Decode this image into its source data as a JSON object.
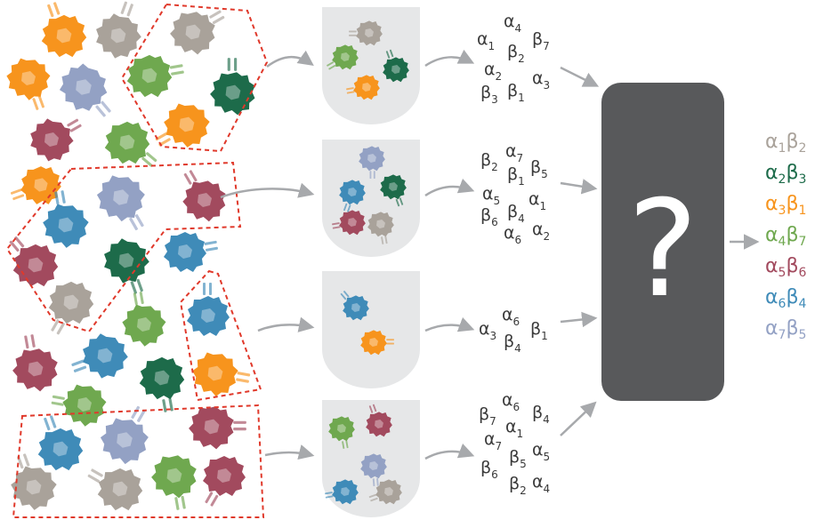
{
  "colors": {
    "orange": "#f7941d",
    "taupe": "#a9a29a",
    "lavender": "#93a1c4",
    "green": "#6fa84f",
    "darkgreen": "#1d6b4a",
    "maroon": "#a24a5e",
    "blue": "#3f8bb8",
    "grey_box": "#58595b",
    "tube": "#e6e7e8",
    "arrow": "#a7a9ac",
    "dashed": "#e0392b"
  },
  "box": {
    "symbol": "?"
  },
  "chains": {
    "alpha": "α",
    "beta": "β"
  },
  "groups": [
    {
      "labels": [
        {
          "c": "α",
          "s": "4"
        },
        {
          "c": "α",
          "s": "1"
        },
        {
          "c": "β",
          "s": "2"
        },
        {
          "c": "β",
          "s": "7"
        },
        {
          "c": "α",
          "s": "2"
        },
        {
          "c": "α",
          "s": "3"
        },
        {
          "c": "β",
          "s": "3"
        },
        {
          "c": "β",
          "s": "1"
        }
      ]
    },
    {
      "labels": [
        {
          "c": "α",
          "s": "7"
        },
        {
          "c": "β",
          "s": "2"
        },
        {
          "c": "β",
          "s": "1"
        },
        {
          "c": "β",
          "s": "5"
        },
        {
          "c": "α",
          "s": "5"
        },
        {
          "c": "α",
          "s": "1"
        },
        {
          "c": "β",
          "s": "6"
        },
        {
          "c": "β",
          "s": "4"
        },
        {
          "c": "α",
          "s": "6"
        },
        {
          "c": "α",
          "s": "2"
        }
      ]
    },
    {
      "labels": [
        {
          "c": "α",
          "s": "6"
        },
        {
          "c": "α",
          "s": "3"
        },
        {
          "c": "β",
          "s": "4"
        },
        {
          "c": "β",
          "s": "1"
        }
      ]
    },
    {
      "labels": [
        {
          "c": "α",
          "s": "6"
        },
        {
          "c": "β",
          "s": "7"
        },
        {
          "c": "β",
          "s": "4"
        },
        {
          "c": "α",
          "s": "1"
        },
        {
          "c": "α",
          "s": "7"
        },
        {
          "c": "α",
          "s": "5"
        },
        {
          "c": "β",
          "s": "5"
        },
        {
          "c": "β",
          "s": "6"
        },
        {
          "c": "β",
          "s": "2"
        },
        {
          "c": "α",
          "s": "4"
        }
      ]
    }
  ],
  "pairs": [
    {
      "a": "α",
      "as": "1",
      "b": "β",
      "bs": "2",
      "color": "#a9a29a"
    },
    {
      "a": "α",
      "as": "2",
      "b": "β",
      "bs": "3",
      "color": "#1d6b4a"
    },
    {
      "a": "α",
      "as": "3",
      "b": "β",
      "bs": "1",
      "color": "#f7941d"
    },
    {
      "a": "α",
      "as": "4",
      "b": "β",
      "bs": "7",
      "color": "#6fa84f"
    },
    {
      "a": "α",
      "as": "5",
      "b": "β",
      "bs": "6",
      "color": "#a24a5e"
    },
    {
      "a": "α",
      "as": "6",
      "b": "β",
      "bs": "4",
      "color": "#3f8bb8"
    },
    {
      "a": "α",
      "as": "7",
      "b": "β",
      "bs": "5",
      "color": "#93a1c4"
    }
  ]
}
